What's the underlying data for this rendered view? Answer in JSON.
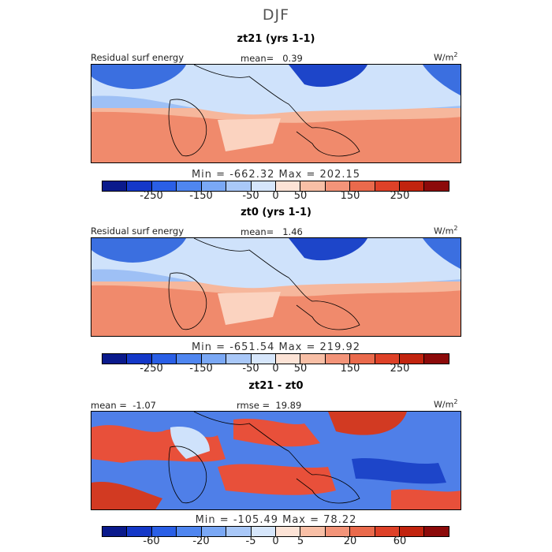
{
  "title": "DJF",
  "panels": [
    {
      "subtitle": "zt21 (yrs 1-1)",
      "left_label": "Residual surf energy",
      "center_label": "mean=   0.39",
      "units": "W/m",
      "units_sup": "2",
      "stats": "Min = -662.32  Max = 202.15",
      "cbar_ticks": [
        "-250",
        "-150",
        "-50",
        "0",
        "50",
        "150",
        "250"
      ]
    },
    {
      "subtitle": "zt0 (yrs 1-1)",
      "left_label": "Residual surf energy",
      "center_label": "mean=   1.46",
      "units": "W/m",
      "units_sup": "2",
      "stats": "Min = -651.54  Max = 219.92",
      "cbar_ticks": [
        "-250",
        "-150",
        "-50",
        "0",
        "50",
        "150",
        "250"
      ]
    },
    {
      "subtitle": "zt21 - zt0",
      "left_label": "mean =  -1.07",
      "center_label": "rmse =  19.89",
      "units": "W/m",
      "units_sup": "2",
      "stats": "Min = -105.49  Max = 78.22",
      "cbar_ticks": [
        "-60",
        "-20",
        "-5",
        "0",
        "5",
        "20",
        "60"
      ]
    }
  ],
  "colorbar_colors": [
    "#0a1a8c",
    "#1438c8",
    "#2a5fe6",
    "#4f86f0",
    "#7aa8f5",
    "#a9c8f8",
    "#d6e6fb",
    "#fce3d6",
    "#f8bfa6",
    "#f39479",
    "#ea6a4c",
    "#de4128",
    "#c2240f",
    "#8c0a0a"
  ]
}
